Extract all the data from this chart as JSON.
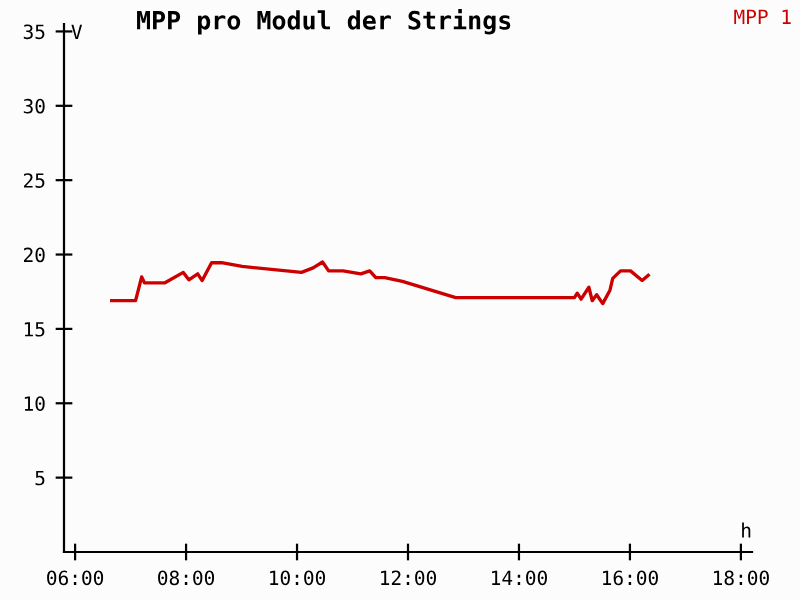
{
  "chart_data": {
    "type": "line",
    "title": "MPP pro Modul der Strings",
    "xlabel": "h",
    "ylabel": "V",
    "xlim": [
      5.8,
      18.2
    ],
    "ylim": [
      0,
      35.5
    ],
    "xticks": [
      {
        "value": 6,
        "label": "06:00"
      },
      {
        "value": 8,
        "label": "08:00"
      },
      {
        "value": 10,
        "label": "10:00"
      },
      {
        "value": 12,
        "label": "12:00"
      },
      {
        "value": 14,
        "label": "14:00"
      },
      {
        "value": 16,
        "label": "16:00"
      },
      {
        "value": 18,
        "label": "18:00"
      }
    ],
    "yticks": [
      5,
      10,
      15,
      20,
      25,
      30,
      35
    ],
    "grid": false,
    "legend": "top right",
    "marker": "none",
    "line_style": "solid",
    "series": [
      {
        "name": "MPP 1",
        "color": "#cc0000",
        "x": [
          6.66,
          7.09,
          7.2,
          7.25,
          7.62,
          7.95,
          8.05,
          8.21,
          8.29,
          8.46,
          8.64,
          9.01,
          10.08,
          10.29,
          10.46,
          10.57,
          10.83,
          11.15,
          11.31,
          11.42,
          11.58,
          11.9,
          12.86,
          15.0,
          15.05,
          15.12,
          15.26,
          15.32,
          15.4,
          15.51,
          15.64,
          15.69,
          15.83,
          16.01,
          16.22,
          16.33
        ],
        "values": [
          16.9,
          16.9,
          18.5,
          18.1,
          18.1,
          18.8,
          18.3,
          18.7,
          18.25,
          19.45,
          19.45,
          19.2,
          18.8,
          19.1,
          19.5,
          18.9,
          18.9,
          18.7,
          18.9,
          18.45,
          18.45,
          18.2,
          17.1,
          17.1,
          17.4,
          17.0,
          17.8,
          16.9,
          17.3,
          16.7,
          17.6,
          18.4,
          18.9,
          18.9,
          18.25,
          18.6
        ]
      }
    ]
  }
}
